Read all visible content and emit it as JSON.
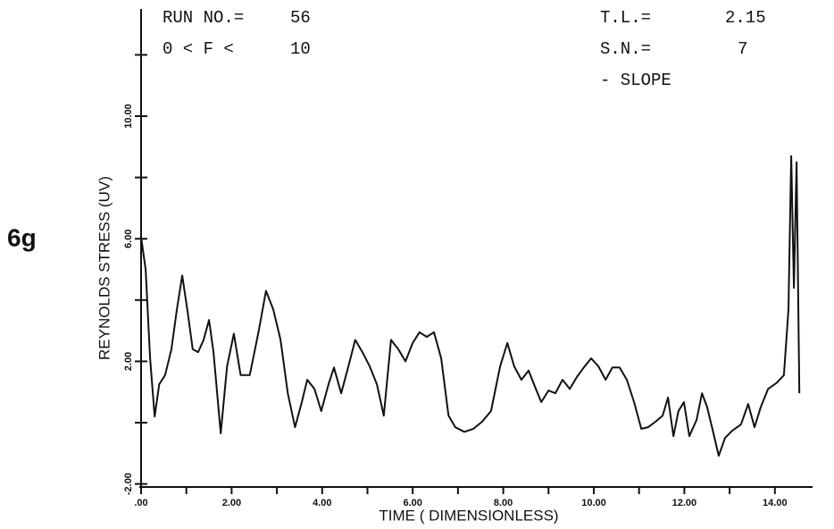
{
  "chart_data": {
    "type": "line",
    "figure_label": "6g",
    "annotations": [
      {
        "label": "RUN NO.=",
        "value": "56"
      },
      {
        "label": "0 < F <",
        "value": "10"
      },
      {
        "label": "T.L.=",
        "value": "2.15"
      },
      {
        "label": "S.N.=",
        "value": "7"
      },
      {
        "label": "- SLOPE"
      }
    ],
    "xlabel": "TIME ( DIMENSIONLESS)",
    "ylabel": "REYNOLDS STRESS (UV)",
    "color": "#111111",
    "x": [
      0,
      0.1,
      0.2,
      0.3,
      0.4,
      0.53,
      0.67,
      0.79,
      0.91,
      1.03,
      1.14,
      1.26,
      1.38,
      1.5,
      1.6,
      1.76,
      1.9,
      2.05,
      2.2,
      2.4,
      2.6,
      2.76,
      2.92,
      3.08,
      3.24,
      3.4,
      3.55,
      3.67,
      3.83,
      3.98,
      4.14,
      4.26,
      4.42,
      4.58,
      4.73,
      4.89,
      5.05,
      5.21,
      5.36,
      5.52,
      5.68,
      5.84,
      6.0,
      6.15,
      6.31,
      6.47,
      6.63,
      6.79,
      6.94,
      7.14,
      7.34,
      7.53,
      7.73,
      7.93,
      8.09,
      8.24,
      8.4,
      8.56,
      8.72,
      8.84,
      9.0,
      9.15,
      9.31,
      9.47,
      9.63,
      9.78,
      9.94,
      10.1,
      10.26,
      10.41,
      10.57,
      10.73,
      10.89,
      11.05,
      11.2,
      11.36,
      11.52,
      11.64,
      11.76,
      11.87,
      11.99,
      12.11,
      12.27,
      12.39,
      12.5,
      12.62,
      12.76,
      12.9,
      13.06,
      13.25,
      13.41,
      13.55,
      13.69,
      13.85,
      14.04,
      14.2,
      14.3,
      14.36,
      14.42,
      14.48,
      14.54
    ],
    "values": [
      6.06,
      5.0,
      2.1,
      0.2,
      1.25,
      1.55,
      2.4,
      3.7,
      4.8,
      3.6,
      2.4,
      2.3,
      2.7,
      3.35,
      2.3,
      -0.35,
      1.84,
      2.9,
      1.55,
      1.55,
      3.0,
      4.3,
      3.7,
      2.7,
      0.96,
      -0.15,
      0.67,
      1.4,
      1.1,
      0.38,
      1.25,
      1.8,
      0.96,
      1.84,
      2.7,
      2.3,
      1.84,
      1.25,
      0.23,
      2.7,
      2.4,
      2.0,
      2.6,
      2.95,
      2.8,
      2.95,
      2.1,
      0.23,
      -0.15,
      -0.3,
      -0.2,
      0.03,
      0.38,
      1.84,
      2.6,
      1.84,
      1.4,
      1.7,
      1.1,
      0.67,
      1.05,
      0.96,
      1.4,
      1.1,
      1.5,
      1.8,
      2.1,
      1.84,
      1.4,
      1.8,
      1.8,
      1.4,
      0.67,
      -0.2,
      -0.15,
      0.03,
      0.23,
      0.82,
      -0.44,
      0.38,
      0.67,
      -0.44,
      0.09,
      0.96,
      0.52,
      -0.2,
      -1.08,
      -0.5,
      -0.26,
      -0.06,
      0.61,
      -0.15,
      0.52,
      1.1,
      1.3,
      1.55,
      3.7,
      8.7,
      4.4,
      8.5,
      0.96
    ],
    "xlim": [
      0,
      15.3
    ],
    "ylim": [
      -2.15,
      13.5
    ],
    "xticks": [
      {
        "value": 0,
        "label": ".00"
      },
      {
        "value": 1,
        "label": null
      },
      {
        "value": 2,
        "label": "2.00"
      },
      {
        "value": 3,
        "label": null
      },
      {
        "value": 4,
        "label": "4.00"
      },
      {
        "value": 5,
        "label": null
      },
      {
        "value": 6,
        "label": "6.00"
      },
      {
        "value": 7,
        "label": null
      },
      {
        "value": 8,
        "label": "8.00"
      },
      {
        "value": 9,
        "label": null
      },
      {
        "value": 10,
        "label": "10.00"
      },
      {
        "value": 11,
        "label": null
      },
      {
        "value": 12,
        "label": "12.00"
      },
      {
        "value": 13,
        "label": null
      },
      {
        "value": 14,
        "label": "14.00"
      }
    ],
    "yticks": [
      {
        "value": -2,
        "label": "-2.00"
      },
      {
        "value": 0,
        "label": null
      },
      {
        "value": 2,
        "label": "2.00"
      },
      {
        "value": 4,
        "label": null
      },
      {
        "value": 6,
        "label": "6.00"
      },
      {
        "value": 8,
        "label": null
      },
      {
        "value": 10,
        "label": "10.00"
      },
      {
        "value": 12,
        "label": null
      }
    ],
    "grid": false
  }
}
